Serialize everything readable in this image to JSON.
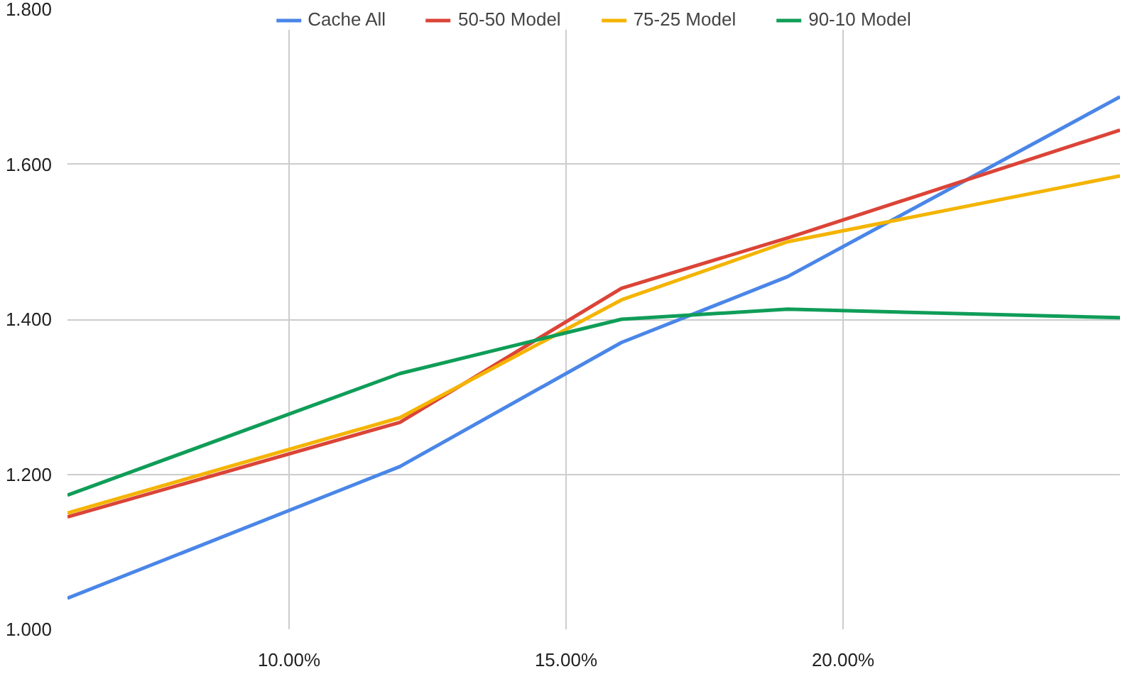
{
  "chart_data": {
    "type": "line",
    "x": [
      6,
      12,
      16,
      19,
      25
    ],
    "series": [
      {
        "name": "Cache All",
        "color": "#4a86e8",
        "values": [
          1.04,
          1.21,
          1.37,
          1.455,
          1.687
        ]
      },
      {
        "name": "50-50 Model",
        "color": "#db4437",
        "values": [
          1.145,
          1.267,
          1.44,
          1.505,
          1.644
        ]
      },
      {
        "name": "75-25 Model",
        "color": "#f4b400",
        "values": [
          1.15,
          1.273,
          1.425,
          1.5,
          1.585
        ]
      },
      {
        "name": "90-10 Model",
        "color": "#0f9d58",
        "values": [
          1.173,
          1.33,
          1.4,
          1.413,
          1.402
        ]
      }
    ],
    "xlim": [
      6,
      25
    ],
    "xticks": [
      {
        "value": 10,
        "label": "10.00%"
      },
      {
        "value": 15,
        "label": "15.00%"
      },
      {
        "value": 20,
        "label": "20.00%"
      }
    ],
    "ylim": [
      1.0,
      1.8
    ],
    "yticks": [
      {
        "value": 1.0,
        "label": "1.000"
      },
      {
        "value": 1.2,
        "label": "1.200"
      },
      {
        "value": 1.4,
        "label": "1.400"
      },
      {
        "value": 1.6,
        "label": "1.600"
      },
      {
        "value": 1.8,
        "label": "1.800"
      }
    ],
    "grid": true,
    "legend": "top",
    "marker": "none",
    "line_style": "solid"
  }
}
